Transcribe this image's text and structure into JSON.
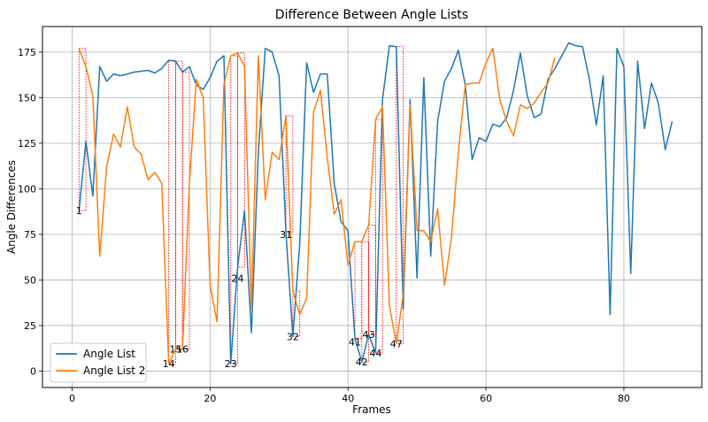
{
  "chart_data": {
    "type": "line",
    "title": "Difference Between Angle Lists",
    "xlabel": "Frames",
    "ylabel": "Angle Differences",
    "xlim": [
      -4.3,
      91.3
    ],
    "ylim": [
      -9,
      189
    ],
    "xticks": [
      0,
      20,
      40,
      60,
      80
    ],
    "yticks": [
      0,
      25,
      50,
      75,
      100,
      125,
      150,
      175
    ],
    "grid": true,
    "legend_position": "lower-left",
    "series": [
      {
        "name": "Angle List",
        "color": "#1f77b4",
        "x": [
          1,
          2,
          3,
          4,
          5,
          6,
          7,
          8,
          9,
          10,
          11,
          12,
          13,
          14,
          15,
          16,
          17,
          18,
          19,
          20,
          21,
          22,
          23,
          24,
          25,
          26,
          27,
          28,
          29,
          30,
          31,
          32,
          33,
          34,
          35,
          36,
          37,
          38,
          39,
          40,
          41,
          42,
          43,
          44,
          45,
          46,
          47,
          48,
          49,
          50,
          51,
          52,
          53,
          54,
          55,
          56,
          57,
          58,
          59,
          60,
          61,
          62,
          63,
          64,
          65,
          66,
          67,
          68,
          69,
          70,
          71,
          72,
          73,
          74,
          75,
          76,
          77,
          78,
          79,
          80,
          81,
          82,
          83,
          84,
          85,
          86,
          87
        ],
        "y": [
          88,
          126,
          96,
          167,
          159,
          163,
          162,
          163,
          164,
          164.5,
          165,
          163.5,
          166,
          170.5,
          170,
          164,
          167,
          157,
          154.5,
          161,
          170,
          173,
          4,
          57,
          88,
          21,
          120,
          177,
          175,
          162,
          76,
          19,
          70,
          169,
          153,
          163,
          163,
          103,
          82,
          77,
          18,
          5,
          20,
          10,
          149,
          178.5,
          178,
          34,
          149,
          51,
          161,
          63,
          137,
          159,
          166,
          176,
          157,
          116,
          128,
          126,
          135.5,
          134,
          139,
          154,
          174.5,
          151,
          139,
          141,
          160,
          166,
          173,
          180,
          178.5,
          178,
          160,
          135,
          162,
          31,
          177,
          167,
          53.5,
          170,
          133,
          158,
          147,
          121.5,
          137
        ]
      },
      {
        "name": "Angle List 2",
        "color": "#ff7f0e",
        "x": [
          1,
          2,
          3,
          4,
          5,
          6,
          7,
          8,
          9,
          10,
          11,
          12,
          13,
          14,
          15,
          16,
          17,
          18,
          19,
          20,
          21,
          22,
          23,
          24,
          25,
          26,
          27,
          28,
          29,
          30,
          31,
          32,
          33,
          34,
          35,
          36,
          37,
          38,
          39,
          40,
          41,
          42,
          43,
          44,
          45,
          46,
          47,
          48,
          49,
          50,
          51,
          52,
          53,
          54,
          55,
          56,
          57,
          58,
          59,
          60,
          61,
          62,
          63,
          64,
          65,
          66,
          67,
          68,
          69,
          70
        ],
        "y": [
          177,
          167,
          151,
          63,
          112,
          130,
          123,
          145,
          123,
          119,
          105,
          109,
          103,
          4,
          12,
          12,
          103,
          160,
          150,
          47,
          27,
          157,
          173,
          174.5,
          167,
          34,
          173,
          94,
          120,
          116,
          140,
          44,
          31,
          40,
          142,
          154,
          117,
          86,
          94,
          58,
          71,
          71,
          80,
          138,
          145,
          36,
          15,
          42,
          146,
          77,
          77,
          71,
          89,
          47,
          73,
          120,
          157,
          158,
          158,
          169,
          177,
          149,
          137,
          129,
          146,
          144,
          147,
          153,
          158,
          172
        ]
      }
    ],
    "annotations": [
      {
        "label": "1",
        "x": 1,
        "y": 88
      },
      {
        "label": "14",
        "x": 14,
        "y": 4
      },
      {
        "label": "15",
        "x": 15,
        "y": 12
      },
      {
        "label": "16",
        "x": 16,
        "y": 12
      },
      {
        "label": "23",
        "x": 23,
        "y": 4
      },
      {
        "label": "24",
        "x": 24,
        "y": 51
      },
      {
        "label": "31",
        "x": 31,
        "y": 75
      },
      {
        "label": "32",
        "x": 32,
        "y": 19
      },
      {
        "label": "41",
        "x": 41,
        "y": 16
      },
      {
        "label": "42",
        "x": 42,
        "y": 5
      },
      {
        "label": "43",
        "x": 43,
        "y": 20
      },
      {
        "label": "44",
        "x": 44,
        "y": 10
      },
      {
        "label": "47",
        "x": 47,
        "y": 15
      }
    ],
    "highlight_frames": [
      1,
      14,
      15,
      16,
      23,
      24,
      31,
      32,
      41,
      42,
      43,
      44,
      47
    ]
  }
}
